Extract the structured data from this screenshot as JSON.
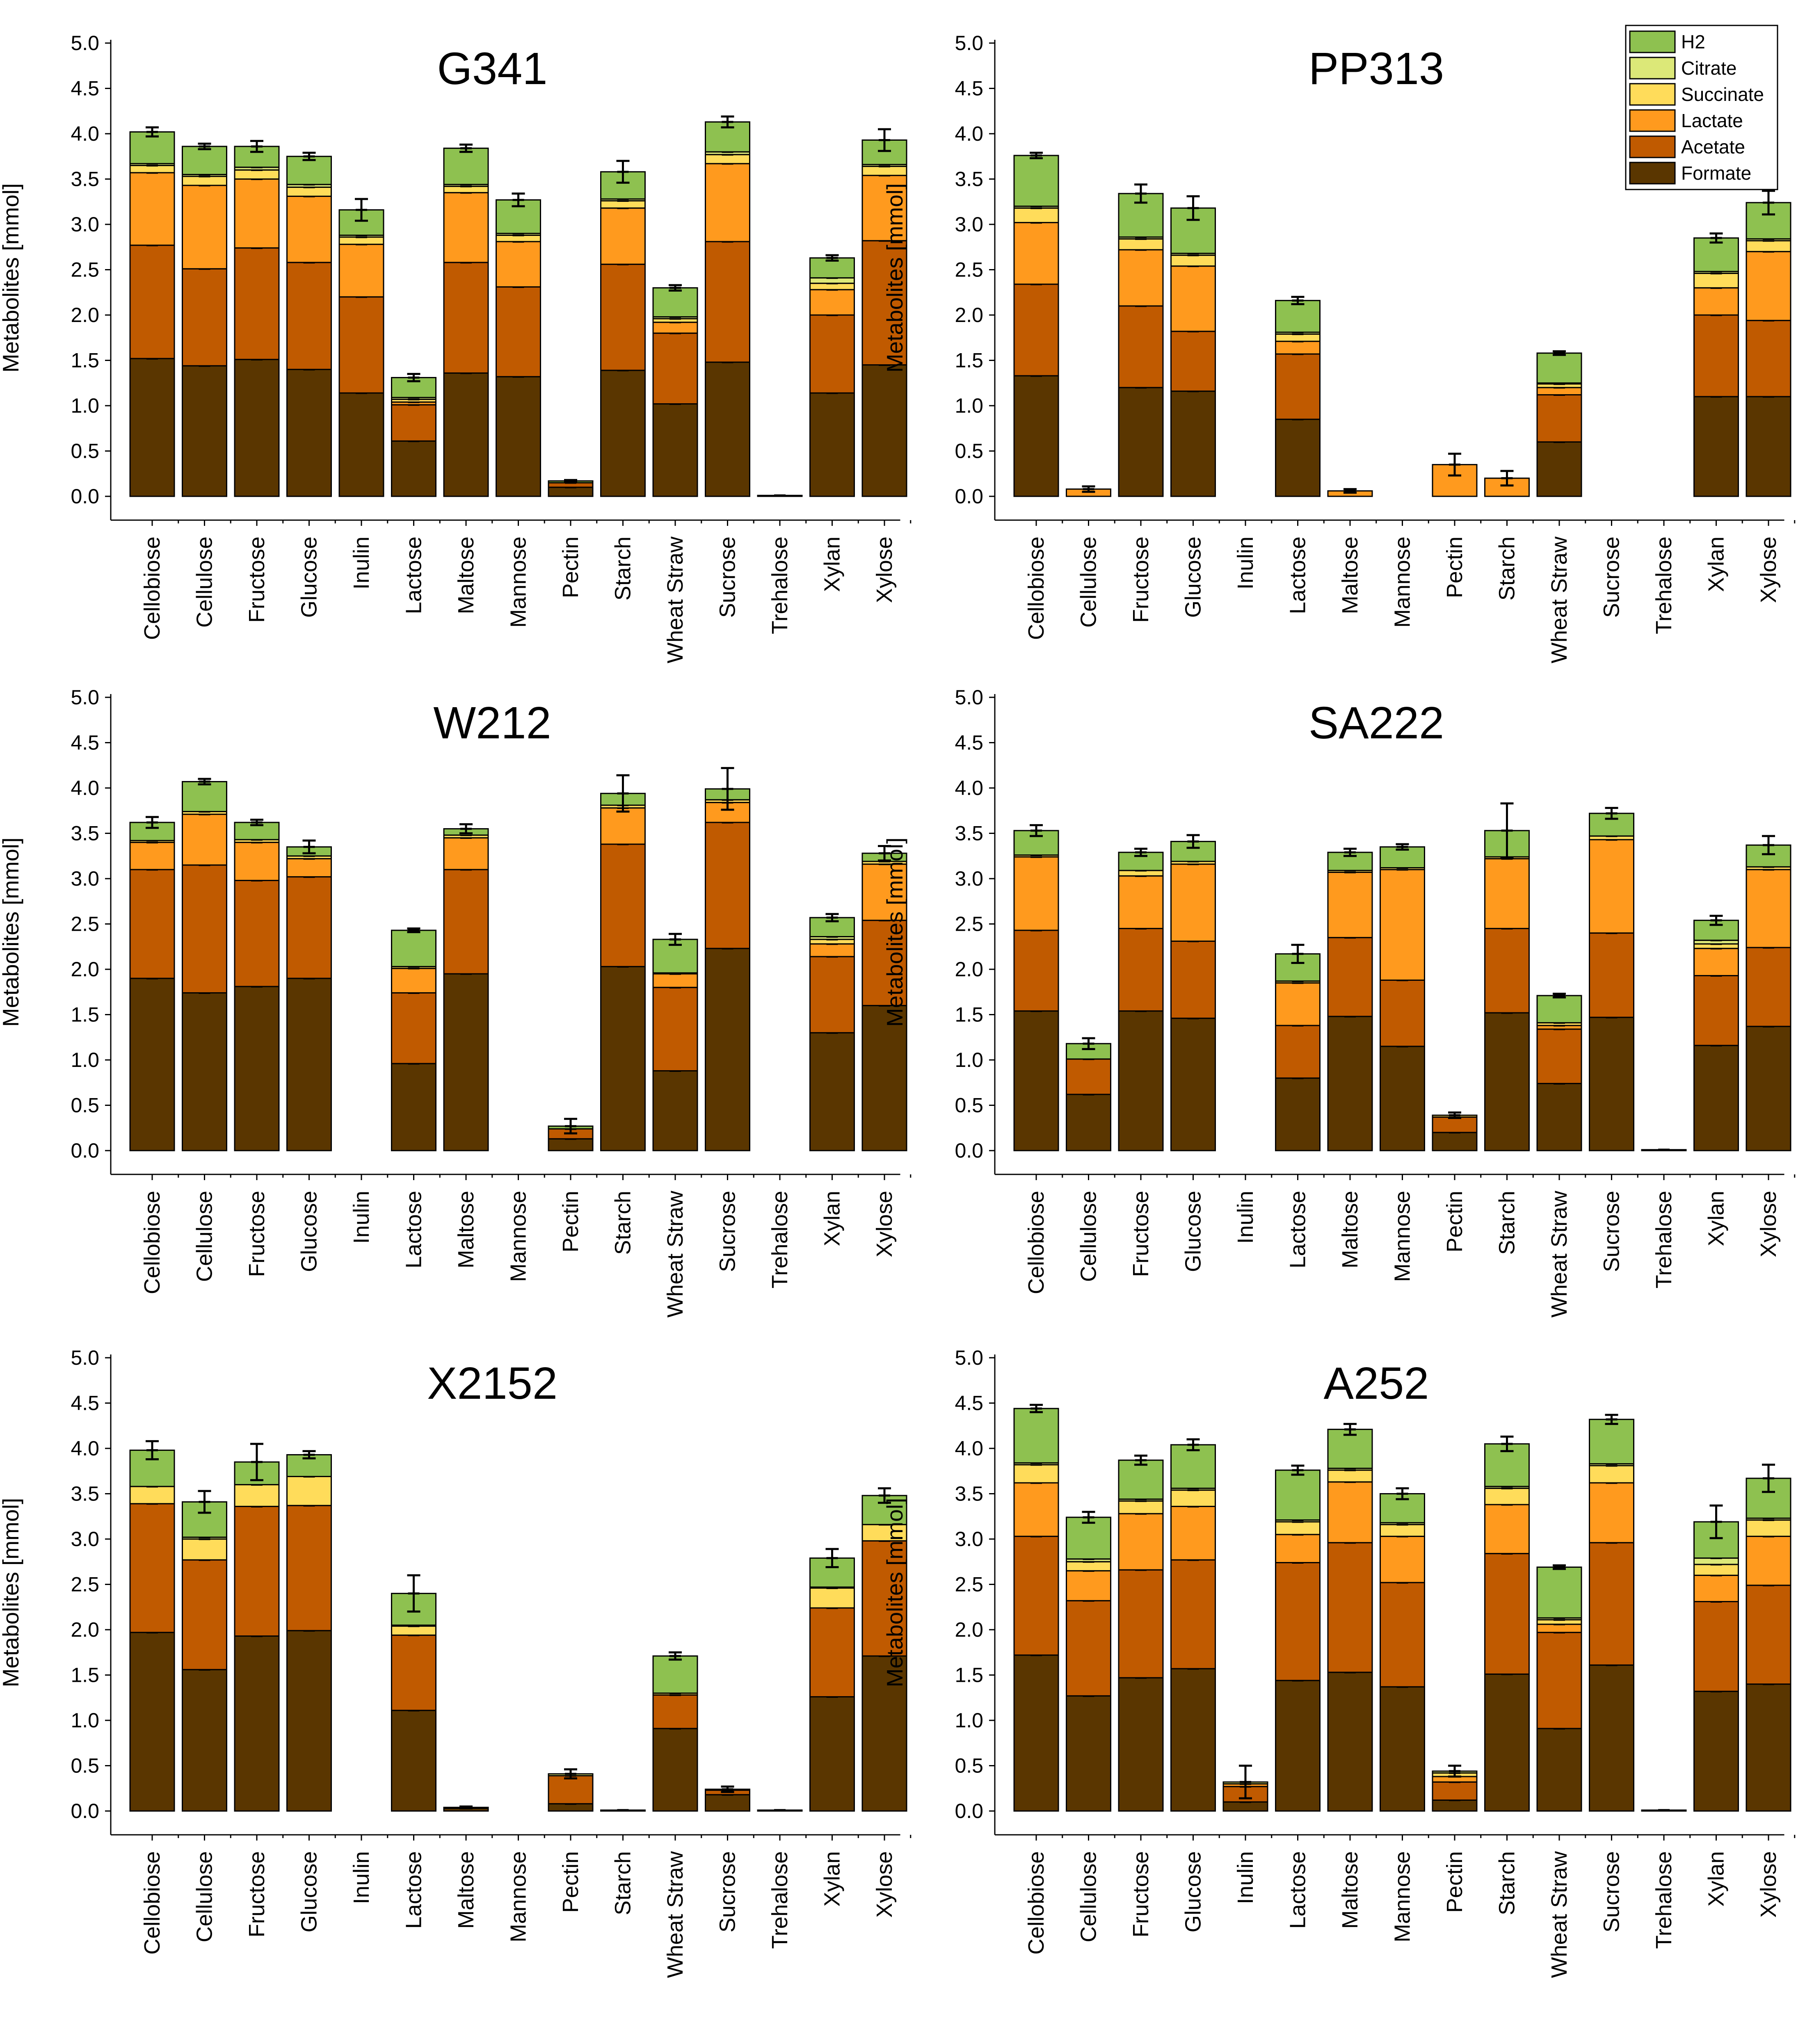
{
  "chart_data": {
    "type": "bar",
    "stacked": true,
    "ylabel": "Metabolites [mmol]",
    "ylim": [
      0,
      5.0
    ],
    "yticks": [
      "0.0",
      "0.5",
      "1.0",
      "1.5",
      "2.0",
      "2.5",
      "3.0",
      "3.5",
      "4.0",
      "4.5",
      "5.0"
    ],
    "categories": [
      "Cellobiose",
      "Cellulose",
      "Fructose",
      "Glucose",
      "Inulin",
      "Lactose",
      "Maltose",
      "Mannose",
      "Pectin",
      "Starch",
      "Wheat Straw",
      "Sucrose",
      "Trehalose",
      "Xylan",
      "Xylose"
    ],
    "series_names": [
      "Formate",
      "Acetate",
      "Lactate",
      "Succinate",
      "Citrate",
      "H2"
    ],
    "legend": {
      "placement": "top-right of PP313 panel",
      "entries": [
        "H2",
        "Citrate",
        "Succinate",
        "Lactate",
        "Acetate",
        "Formate"
      ]
    },
    "colors": {
      "Formate": "#5a3600",
      "Acetate": "#c05a00",
      "Lactate": "#ff9a1e",
      "Succinate": "#ffdc5a",
      "Citrate": "#dce878",
      "H2": "#8ec150"
    },
    "panels": [
      {
        "title": "G341",
        "series": {
          "Formate": [
            1.52,
            1.44,
            1.51,
            1.4,
            1.14,
            0.61,
            1.36,
            1.32,
            0.1,
            1.39,
            1.02,
            1.48,
            0.0,
            1.14,
            1.45
          ],
          "Acetate": [
            1.25,
            1.07,
            1.23,
            1.18,
            1.06,
            0.4,
            1.22,
            0.99,
            0.05,
            1.17,
            0.78,
            1.33,
            0.0,
            0.86,
            1.37
          ],
          "Lactate": [
            0.8,
            0.92,
            0.76,
            0.73,
            0.58,
            0.03,
            0.77,
            0.5,
            0.0,
            0.62,
            0.12,
            0.86,
            0.0,
            0.28,
            0.72
          ],
          "Succinate": [
            0.08,
            0.1,
            0.1,
            0.1,
            0.08,
            0.03,
            0.07,
            0.07,
            0.0,
            0.08,
            0.04,
            0.1,
            0.0,
            0.07,
            0.1
          ],
          "Citrate": [
            0.02,
            0.02,
            0.03,
            0.03,
            0.02,
            0.02,
            0.02,
            0.02,
            0.0,
            0.02,
            0.02,
            0.03,
            0.0,
            0.06,
            0.02
          ],
          "H2": [
            0.35,
            0.31,
            0.23,
            0.31,
            0.28,
            0.22,
            0.4,
            0.37,
            0.02,
            0.3,
            0.32,
            0.33,
            0.01,
            0.22,
            0.27
          ]
        },
        "errors": [
          0.05,
          0.03,
          0.06,
          0.04,
          0.12,
          0.04,
          0.04,
          0.07,
          0.01,
          0.12,
          0.03,
          0.06,
          0.0,
          0.03,
          0.12
        ]
      },
      {
        "title": "PP313",
        "series": {
          "Formate": [
            1.33,
            0.0,
            1.2,
            1.16,
            0.0,
            0.85,
            0.0,
            0.0,
            0.0,
            0.0,
            0.6,
            0.0,
            0.0,
            1.1,
            1.1
          ],
          "Acetate": [
            1.01,
            0.0,
            0.9,
            0.66,
            0.0,
            0.72,
            0.0,
            0.0,
            0.0,
            0.0,
            0.52,
            0.0,
            0.0,
            0.9,
            0.84
          ],
          "Lactate": [
            0.68,
            0.08,
            0.62,
            0.72,
            0.0,
            0.14,
            0.06,
            0.0,
            0.35,
            0.2,
            0.08,
            0.0,
            0.0,
            0.3,
            0.76
          ],
          "Succinate": [
            0.16,
            0.0,
            0.12,
            0.12,
            0.0,
            0.08,
            0.0,
            0.0,
            0.0,
            0.0,
            0.04,
            0.0,
            0.0,
            0.16,
            0.12
          ],
          "Citrate": [
            0.02,
            0.0,
            0.02,
            0.02,
            0.0,
            0.02,
            0.0,
            0.0,
            0.0,
            0.0,
            0.01,
            0.0,
            0.0,
            0.02,
            0.02
          ],
          "H2": [
            0.56,
            0.0,
            0.48,
            0.5,
            0.0,
            0.35,
            0.0,
            0.0,
            0.0,
            0.0,
            0.33,
            0.0,
            0.0,
            0.37,
            0.4
          ]
        },
        "errors": [
          0.03,
          0.03,
          0.1,
          0.13,
          0.0,
          0.04,
          0.02,
          0.0,
          0.12,
          0.08,
          0.02,
          0.0,
          0.0,
          0.05,
          0.13
        ]
      },
      {
        "title": "W212",
        "series": {
          "Formate": [
            1.9,
            1.74,
            1.81,
            1.9,
            0.0,
            0.96,
            1.95,
            0.0,
            0.13,
            2.03,
            0.88,
            2.23,
            0.0,
            1.3,
            1.6
          ],
          "Acetate": [
            1.2,
            1.41,
            1.17,
            1.12,
            0.0,
            0.78,
            1.15,
            0.0,
            0.11,
            1.35,
            0.92,
            1.39,
            0.0,
            0.84,
            0.94
          ],
          "Lactate": [
            0.3,
            0.56,
            0.42,
            0.2,
            0.0,
            0.27,
            0.35,
            0.0,
            0.0,
            0.4,
            0.15,
            0.22,
            0.0,
            0.14,
            0.62
          ],
          "Succinate": [
            0.02,
            0.03,
            0.03,
            0.03,
            0.0,
            0.02,
            0.03,
            0.0,
            0.0,
            0.03,
            0.01,
            0.03,
            0.0,
            0.05,
            0.03
          ],
          "Citrate": [
            0.0,
            0.0,
            0.0,
            0.0,
            0.0,
            0.0,
            0.0,
            0.0,
            0.0,
            0.0,
            0.0,
            0.0,
            0.0,
            0.03,
            0.0
          ],
          "H2": [
            0.2,
            0.33,
            0.19,
            0.1,
            0.0,
            0.4,
            0.07,
            0.0,
            0.03,
            0.13,
            0.37,
            0.12,
            0.0,
            0.21,
            0.09
          ]
        },
        "errors": [
          0.06,
          0.03,
          0.03,
          0.07,
          0.0,
          0.02,
          0.05,
          0.0,
          0.08,
          0.2,
          0.06,
          0.23,
          0.0,
          0.04,
          0.08
        ]
      },
      {
        "title": "SA222",
        "series": {
          "Formate": [
            1.54,
            0.62,
            1.54,
            1.46,
            0.0,
            0.8,
            1.48,
            1.15,
            0.2,
            1.52,
            0.74,
            1.47,
            0.0,
            1.16,
            1.37
          ],
          "Acetate": [
            0.89,
            0.39,
            0.91,
            0.85,
            0.0,
            0.58,
            0.87,
            0.73,
            0.17,
            0.93,
            0.6,
            0.93,
            0.0,
            0.77,
            0.87
          ],
          "Lactate": [
            0.81,
            0.0,
            0.58,
            0.85,
            0.0,
            0.47,
            0.72,
            1.22,
            0.0,
            0.77,
            0.04,
            1.03,
            0.0,
            0.3,
            0.86
          ],
          "Succinate": [
            0.02,
            0.0,
            0.06,
            0.03,
            0.0,
            0.02,
            0.02,
            0.02,
            0.02,
            0.02,
            0.03,
            0.04,
            0.0,
            0.05,
            0.03
          ],
          "Citrate": [
            0.0,
            0.0,
            0.0,
            0.0,
            0.0,
            0.0,
            0.0,
            0.0,
            0.0,
            0.0,
            0.0,
            0.0,
            0.0,
            0.04,
            0.0
          ],
          "H2": [
            0.27,
            0.17,
            0.2,
            0.22,
            0.0,
            0.3,
            0.2,
            0.23,
            0.0,
            0.29,
            0.3,
            0.25,
            0.01,
            0.22,
            0.24
          ]
        },
        "errors": [
          0.06,
          0.06,
          0.04,
          0.07,
          0.0,
          0.1,
          0.04,
          0.03,
          0.03,
          0.3,
          0.02,
          0.06,
          0.0,
          0.05,
          0.1
        ]
      },
      {
        "title": "X2152",
        "series": {
          "Formate": [
            1.97,
            1.56,
            1.93,
            1.99,
            0.0,
            1.11,
            0.03,
            0.0,
            0.08,
            0.01,
            0.91,
            0.18,
            0.01,
            1.26,
            1.71
          ],
          "Acetate": [
            1.42,
            1.21,
            1.43,
            1.38,
            0.0,
            0.83,
            0.0,
            0.0,
            0.31,
            0.0,
            0.37,
            0.05,
            0.0,
            0.98,
            1.27
          ],
          "Lactate": [
            0.0,
            0.0,
            0.0,
            0.0,
            0.0,
            0.0,
            0.0,
            0.0,
            0.0,
            0.0,
            0.0,
            0.0,
            0.0,
            0.0,
            0.0
          ],
          "Succinate": [
            0.19,
            0.23,
            0.24,
            0.32,
            0.0,
            0.1,
            0.0,
            0.0,
            0.0,
            0.0,
            0.02,
            0.0,
            0.0,
            0.22,
            0.18
          ],
          "Citrate": [
            0.0,
            0.02,
            0.0,
            0.0,
            0.0,
            0.01,
            0.0,
            0.0,
            0.02,
            0.0,
            0.0,
            0.0,
            0.0,
            0.01,
            0.0
          ],
          "H2": [
            0.4,
            0.39,
            0.25,
            0.24,
            0.0,
            0.35,
            0.01,
            0.0,
            0.0,
            0.0,
            0.41,
            0.01,
            0.0,
            0.32,
            0.32
          ]
        },
        "errors": [
          0.1,
          0.12,
          0.2,
          0.04,
          0.0,
          0.2,
          0.01,
          0.0,
          0.05,
          0.0,
          0.04,
          0.03,
          0.0,
          0.1,
          0.08
        ]
      },
      {
        "title": "A252",
        "series": {
          "Formate": [
            1.72,
            1.27,
            1.47,
            1.57,
            0.1,
            1.44,
            1.53,
            1.37,
            0.12,
            1.51,
            0.91,
            1.61,
            0.0,
            1.32,
            1.4
          ],
          "Acetate": [
            1.31,
            1.05,
            1.19,
            1.2,
            0.17,
            1.3,
            1.43,
            1.15,
            0.2,
            1.33,
            1.06,
            1.35,
            0.0,
            0.99,
            1.09
          ],
          "Lactate": [
            0.59,
            0.33,
            0.62,
            0.59,
            0.03,
            0.31,
            0.67,
            0.51,
            0.06,
            0.54,
            0.09,
            0.66,
            0.0,
            0.29,
            0.54
          ],
          "Succinate": [
            0.2,
            0.1,
            0.14,
            0.18,
            0.0,
            0.14,
            0.13,
            0.13,
            0.04,
            0.18,
            0.05,
            0.19,
            0.0,
            0.12,
            0.18
          ],
          "Citrate": [
            0.02,
            0.03,
            0.02,
            0.02,
            0.02,
            0.02,
            0.02,
            0.02,
            0.02,
            0.02,
            0.02,
            0.02,
            0.0,
            0.07,
            0.02
          ],
          "H2": [
            0.6,
            0.46,
            0.43,
            0.48,
            0.0,
            0.55,
            0.43,
            0.32,
            0.0,
            0.47,
            0.56,
            0.49,
            0.01,
            0.4,
            0.44
          ]
        },
        "errors": [
          0.04,
          0.06,
          0.05,
          0.06,
          0.18,
          0.05,
          0.06,
          0.06,
          0.06,
          0.08,
          0.02,
          0.05,
          0.0,
          0.18,
          0.15
        ]
      }
    ]
  }
}
